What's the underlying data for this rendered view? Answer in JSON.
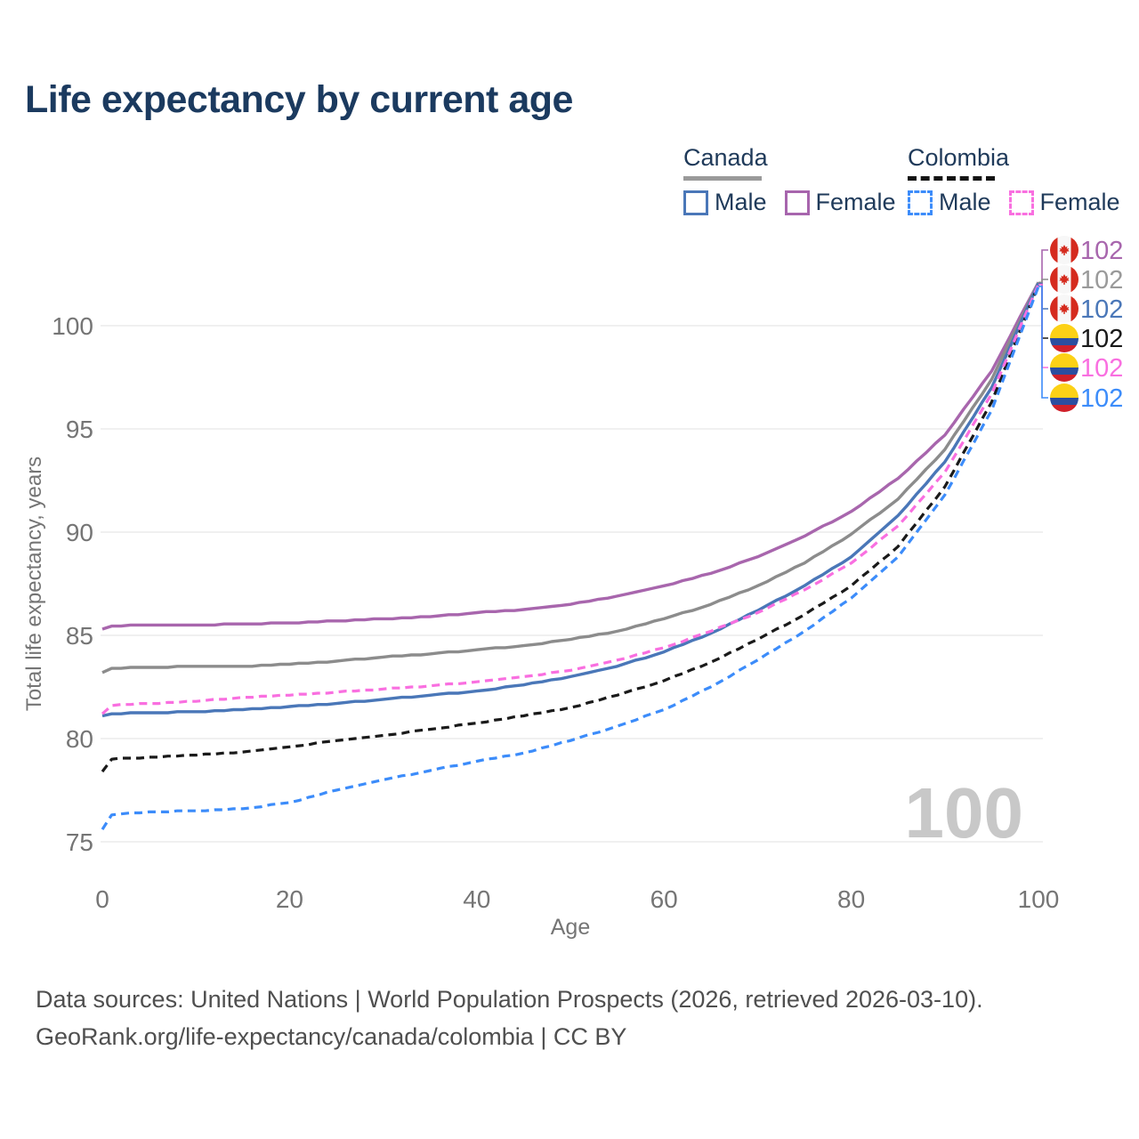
{
  "page": {
    "title": "Life expectancy by current age",
    "watermark_age": "100",
    "footer_line1": "Data sources: United Nations | World Population Prospects (2026, retrieved 2026-03-10).",
    "footer_line2": "GeoRank.org/life-expectancy/canada/colombia | CC BY"
  },
  "legend": {
    "canada": {
      "label": "Canada",
      "male_label": "Male",
      "female_label": "Female"
    },
    "colombia": {
      "label": "Colombia",
      "male_label": "Male",
      "female_label": "Female"
    }
  },
  "colors": {
    "title_text": "#1b3a5f",
    "legend_text": "#1f3a5a",
    "axis_text": "#757575",
    "grid": "#e7e7e7",
    "watermark": "#c8c8c8",
    "footer_text": "#4f4f4f",
    "canada_underline": "#9a9a9a",
    "colombia_underline": "#141414"
  },
  "chart_data": {
    "type": "line",
    "title": "Life expectancy by current age",
    "xlabel": "Age",
    "ylabel": "Total life expectancy, years",
    "xlim": [
      0,
      100
    ],
    "ylim": [
      73.5,
      103
    ],
    "x_ticks": [
      0,
      20,
      40,
      60,
      80,
      100
    ],
    "y_ticks": [
      75,
      80,
      85,
      90,
      95,
      100
    ],
    "grid": "horizontal-only",
    "legend_position": "top-right",
    "x": [
      0,
      1,
      5,
      10,
      15,
      20,
      25,
      30,
      35,
      40,
      45,
      50,
      55,
      60,
      65,
      70,
      75,
      80,
      85,
      90,
      95,
      100
    ],
    "series": [
      {
        "name": "Canada Female",
        "country": "Canada",
        "sex": "Female",
        "flag": "canada",
        "color": "#a866ad",
        "dashed": false,
        "end_label": "102",
        "values": [
          85.3,
          85.45,
          85.5,
          85.5,
          85.55,
          85.6,
          85.7,
          85.8,
          85.9,
          86.1,
          86.25,
          86.5,
          86.9,
          87.4,
          88.0,
          88.8,
          89.8,
          91.0,
          92.6,
          94.7,
          97.8,
          102.1
        ]
      },
      {
        "name": "Canada Both sexes",
        "country": "Canada",
        "sex": "Both",
        "flag": "canada",
        "color": "#8c8c8c",
        "dashed": false,
        "end_label": "102",
        "label_color": "#9a9a9a",
        "values": [
          83.2,
          83.4,
          83.45,
          83.5,
          83.5,
          83.6,
          83.75,
          83.95,
          84.1,
          84.3,
          84.5,
          84.8,
          85.2,
          85.8,
          86.5,
          87.4,
          88.5,
          89.9,
          91.6,
          94.0,
          97.4,
          102.1
        ]
      },
      {
        "name": "Canada Male",
        "country": "Canada",
        "sex": "Male",
        "flag": "canada",
        "color": "#4a77b8",
        "dashed": false,
        "end_label": "102",
        "values": [
          81.1,
          81.2,
          81.25,
          81.3,
          81.4,
          81.55,
          81.7,
          81.9,
          82.1,
          82.3,
          82.6,
          83.0,
          83.5,
          84.2,
          85.1,
          86.2,
          87.4,
          88.8,
          90.8,
          93.4,
          97.0,
          102.05
        ]
      },
      {
        "name": "Colombia Both sexes",
        "country": "Colombia",
        "sex": "Both",
        "flag": "colombia",
        "color": "#1a1a1a",
        "dashed": true,
        "end_label": "102",
        "values": [
          78.4,
          79.0,
          79.1,
          79.2,
          79.35,
          79.6,
          79.9,
          80.15,
          80.45,
          80.75,
          81.1,
          81.5,
          82.1,
          82.8,
          83.7,
          84.8,
          86.0,
          87.4,
          89.3,
          92.2,
          96.3,
          102.0
        ]
      },
      {
        "name": "Colombia Female",
        "country": "Colombia",
        "sex": "Female",
        "flag": "colombia",
        "color": "#f96fe0",
        "dashed": true,
        "end_label": "102",
        "values": [
          81.2,
          81.6,
          81.7,
          81.8,
          82.0,
          82.1,
          82.25,
          82.4,
          82.55,
          82.75,
          83.0,
          83.3,
          83.8,
          84.4,
          85.2,
          86.1,
          87.2,
          88.5,
          90.3,
          92.9,
          96.7,
          102.0
        ]
      },
      {
        "name": "Colombia Male",
        "country": "Colombia",
        "sex": "Male",
        "flag": "colombia",
        "color": "#3c8cfa",
        "dashed": true,
        "end_label": "102",
        "values": [
          75.6,
          76.3,
          76.45,
          76.5,
          76.6,
          76.9,
          77.5,
          78.0,
          78.45,
          78.9,
          79.3,
          79.9,
          80.6,
          81.4,
          82.5,
          83.8,
          85.2,
          86.8,
          88.8,
          91.8,
          95.9,
          101.9
        ]
      }
    ],
    "flag_colors": {
      "canada_red": "#d52b1e",
      "canada_white": "#f7f7f7",
      "colombia_yellow": "#fcd116",
      "colombia_blue": "#2b4ea0",
      "colombia_red": "#d0202a"
    }
  }
}
